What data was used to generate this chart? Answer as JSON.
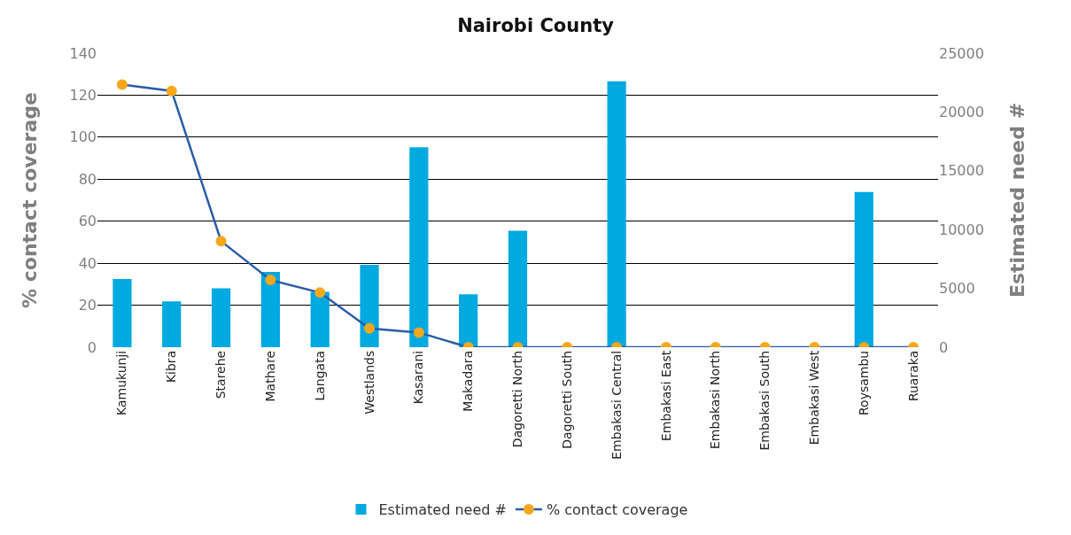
{
  "chart_data": {
    "type": "bar",
    "title": "Nairobi County",
    "ylabel": "% contact coverage",
    "y2label": "Estimated need #",
    "categories": [
      "Kamukunji",
      "Kibra",
      "Starehe",
      "Mathare",
      "Langata",
      "Westlands",
      "Kasarani",
      "Makadara",
      "Dagoretti North",
      "Dagoretti South",
      "Embakasi Central",
      "Embakasi East",
      "Embakasi North",
      "Embakasi South",
      "Embakasi West",
      "Roysambu",
      "Ruaraka"
    ],
    "series": [
      {
        "name": "Estimated need #",
        "axis": "y2",
        "color": "#00a9e0",
        "values": [
          5800,
          3900,
          5000,
          6400,
          4700,
          7000,
          17000,
          4500,
          9900,
          0,
          22600,
          0,
          0,
          0,
          0,
          13200,
          0
        ]
      },
      {
        "name": "% contact coverage",
        "type": "line",
        "axis": "y",
        "color": "#2a5caa",
        "marker": "circle",
        "values": [
          125,
          122,
          50.5,
          32,
          26,
          9,
          7,
          0,
          0,
          0,
          0,
          0,
          0,
          0,
          0,
          0,
          0
        ]
      }
    ],
    "ylim": [
      0,
      140
    ],
    "yticks": [
      0,
      20,
      40,
      60,
      80,
      100,
      120,
      140
    ],
    "y2lim": [
      0,
      25000
    ],
    "y2ticks": [
      0,
      5000,
      10000,
      15000,
      20000,
      25000
    ],
    "grid": "y",
    "legend": "bottom"
  }
}
